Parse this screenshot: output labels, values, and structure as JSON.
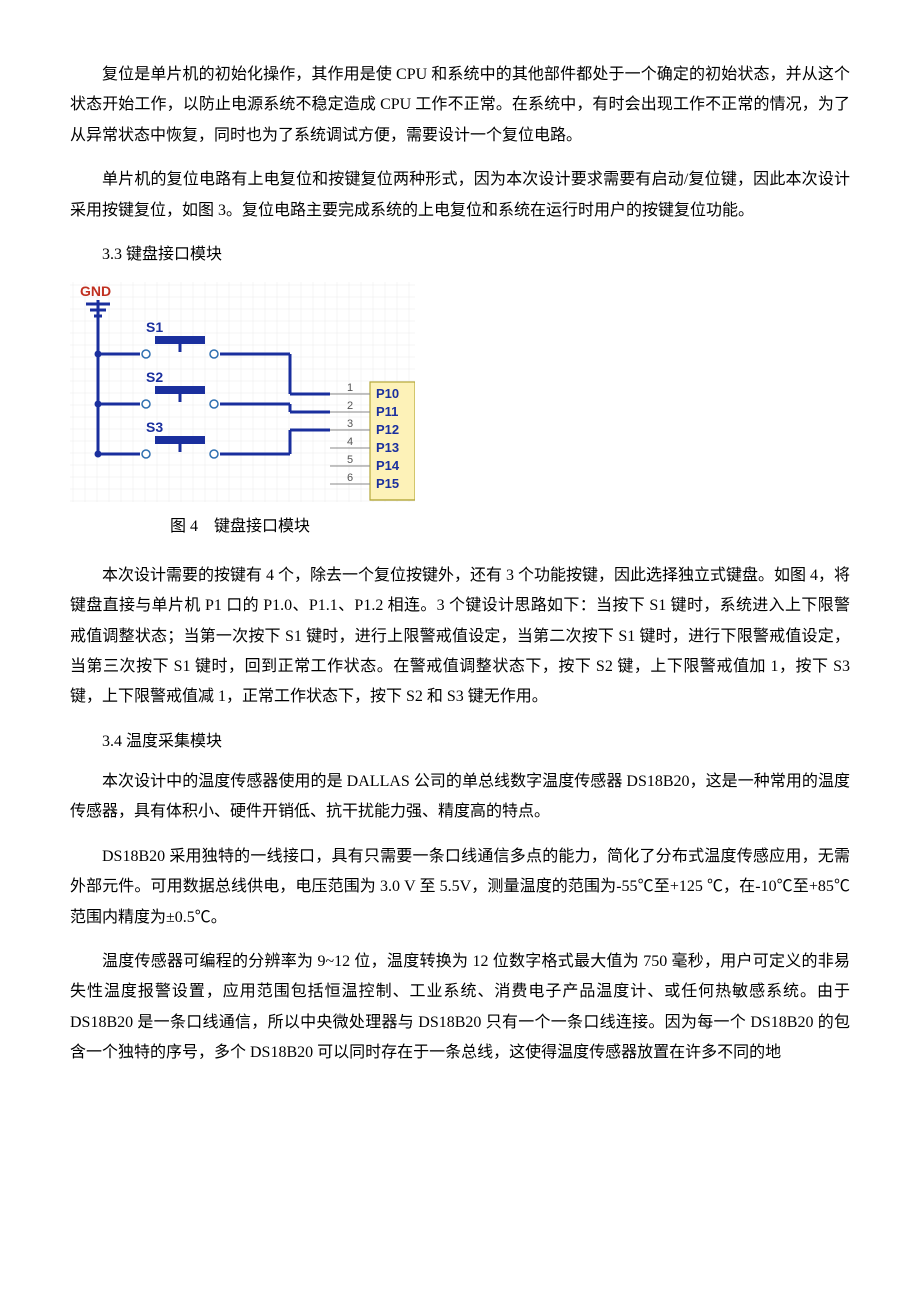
{
  "p1": "复位是单片机的初始化操作，其作用是使 CPU 和系统中的其他部件都处于一个确定的初始状态，并从这个状态开始工作，以防止电源系统不稳定造成 CPU 工作不正常。在系统中，有时会出现工作不正常的情况，为了从异常状态中恢复，同时也为了系统调试方便，需要设计一个复位电路。",
  "p2": "单片机的复位电路有上电复位和按键复位两种形式，因为本次设计要求需要有启动/复位键，因此本次设计采用按键复位，如图 3。复位电路主要完成系统的上电复位和系统在运行时用户的按键复位功能。",
  "s33": "3.3 键盘接口模块",
  "caption4": "图 4　键盘接口模块",
  "p3": "本次设计需要的按键有 4 个，除去一个复位按键外，还有 3 个功能按键，因此选择独立式键盘。如图 4，将键盘直接与单片机 P1 口的 P1.0、P1.1、P1.2 相连。3 个键设计思路如下：当按下 S1 键时，系统进入上下限警戒值调整状态；当第一次按下 S1 键时，进行上限警戒值设定，当第二次按下 S1 键时，进行下限警戒值设定，当第三次按下 S1 键时，回到正常工作状态。在警戒值调整状态下，按下 S2 键，上下限警戒值加 1，按下 S3 键，上下限警戒值减 1，正常工作状态下，按下 S2 和 S3 键无作用。",
  "s34": "3.4 温度采集模块",
  "p4": "本次设计中的温度传感器使用的是 DALLAS 公司的单总线数字温度传感器 DS18B20，这是一种常用的温度传感器，具有体积小、硬件开销低、抗干扰能力强、精度高的特点。",
  "p5": "DS18B20 采用独特的一线接口，具有只需要一条口线通信多点的能力，简化了分布式温度传感应用，无需外部元件。可用数据总线供电，电压范围为 3.0 V 至 5.5V，测量温度的范围为-55℃至+125 ℃，在-10℃至+85℃范围内精度为±0.5℃。",
  "p6": "温度传感器可编程的分辨率为 9~12 位，温度转换为 12 位数字格式最大值为 750 毫秒，用户可定义的非易失性温度报警设置，应用范围包括恒温控制、工业系统、消费电子产品温度计、或任何热敏感系统。由于 DS18B20 是一条口线通信，所以中央微处理器与 DS18B20 只有一个一条口线连接。因为每一个 DS18B20 的包含一个独特的序号，多个 DS18B20 可以同时存在于一条总线，这使得温度传感器放置在许多不同的地",
  "diagram": {
    "gnd": "GND",
    "switches": [
      "S1",
      "S2",
      "S3"
    ],
    "pins_numbered": [
      "1",
      "2",
      "3",
      "4",
      "5",
      "6"
    ],
    "pins_labels": [
      "P10",
      "P11",
      "P12",
      "P13",
      "P14",
      "P15"
    ],
    "colors": {
      "wire": "#1a2f9e",
      "switch_dot": "#2e6fb0",
      "gnd_text": "#c03020",
      "chip_fill": "#fdf2b8",
      "chip_stroke": "#b5a83a",
      "chip_text": "#1a2f9e",
      "pin_num": "#555555",
      "pin_line": "#888888",
      "grid": "#eaeaea"
    }
  }
}
